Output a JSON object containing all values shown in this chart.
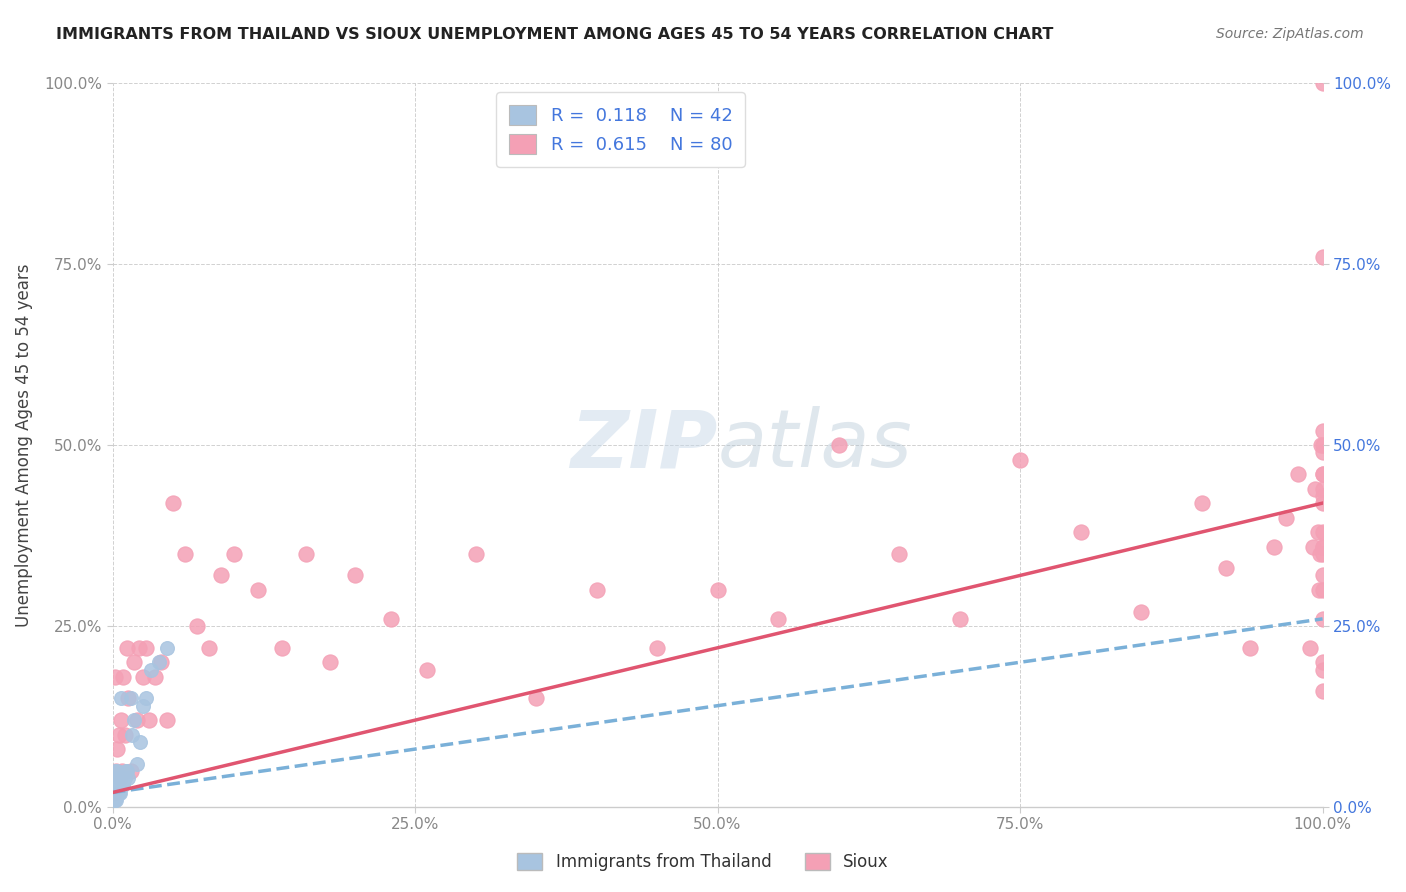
{
  "title": "IMMIGRANTS FROM THAILAND VS SIOUX UNEMPLOYMENT AMONG AGES 45 TO 54 YEARS CORRELATION CHART",
  "source": "Source: ZipAtlas.com",
  "ylabel": "Unemployment Among Ages 45 to 54 years",
  "xlim": [
    0,
    1.0
  ],
  "ylim": [
    0,
    1.0
  ],
  "xticks": [
    0.0,
    0.25,
    0.5,
    0.75,
    1.0
  ],
  "yticks": [
    0.0,
    0.25,
    0.5,
    0.75,
    1.0
  ],
  "xticklabels_left": [
    "0.0%",
    "25.0%",
    "50.0%",
    "75.0%",
    "100.0%"
  ],
  "yticklabels_left": [
    "0.0%",
    "25.0%",
    "50.0%",
    "75.0%",
    "100.0%"
  ],
  "yticklabels_right": [
    "0.0%",
    "25.0%",
    "50.0%",
    "75.0%",
    "100.0%"
  ],
  "color_thailand": "#a8c4e0",
  "color_sioux": "#f4a0b5",
  "color_trendline_thailand": "#7ab0d8",
  "color_trendline_sioux": "#e05570",
  "color_blue_labels": "#4477dd",
  "color_gray_labels": "#888888",
  "background_color": "#ffffff",
  "watermark": "ZIPatlas",
  "thailand_x": [
    0.001,
    0.001,
    0.001,
    0.001,
    0.002,
    0.002,
    0.002,
    0.002,
    0.002,
    0.002,
    0.003,
    0.003,
    0.003,
    0.003,
    0.003,
    0.004,
    0.004,
    0.004,
    0.004,
    0.005,
    0.005,
    0.005,
    0.006,
    0.006,
    0.007,
    0.007,
    0.008,
    0.009,
    0.01,
    0.011,
    0.012,
    0.013,
    0.015,
    0.016,
    0.018,
    0.02,
    0.023,
    0.025,
    0.028,
    0.032,
    0.038,
    0.045
  ],
  "thailand_y": [
    0.01,
    0.02,
    0.03,
    0.04,
    0.01,
    0.02,
    0.02,
    0.03,
    0.04,
    0.05,
    0.01,
    0.02,
    0.03,
    0.03,
    0.04,
    0.02,
    0.03,
    0.04,
    0.05,
    0.02,
    0.03,
    0.04,
    0.02,
    0.03,
    0.03,
    0.15,
    0.04,
    0.03,
    0.04,
    0.05,
    0.05,
    0.04,
    0.15,
    0.1,
    0.12,
    0.06,
    0.09,
    0.14,
    0.15,
    0.19,
    0.2,
    0.22
  ],
  "sioux_x": [
    0.001,
    0.002,
    0.003,
    0.004,
    0.005,
    0.006,
    0.007,
    0.008,
    0.009,
    0.01,
    0.012,
    0.013,
    0.015,
    0.018,
    0.02,
    0.022,
    0.025,
    0.028,
    0.03,
    0.035,
    0.04,
    0.045,
    0.05,
    0.06,
    0.07,
    0.08,
    0.09,
    0.1,
    0.12,
    0.14,
    0.16,
    0.18,
    0.2,
    0.23,
    0.26,
    0.3,
    0.35,
    0.4,
    0.45,
    0.5,
    0.55,
    0.6,
    0.65,
    0.7,
    0.75,
    0.8,
    0.85,
    0.9,
    0.92,
    0.94,
    0.96,
    0.97,
    0.98,
    0.99,
    0.992,
    0.994,
    0.996,
    0.997,
    0.998,
    0.999,
    1.0,
    1.0,
    1.0,
    1.0,
    1.0,
    1.0,
    1.0,
    1.0,
    1.0,
    1.0,
    1.0,
    1.0,
    1.0,
    1.0,
    1.0,
    1.0,
    1.0,
    1.0,
    1.0,
    1.0
  ],
  "sioux_y": [
    0.02,
    0.18,
    0.05,
    0.08,
    0.1,
    0.04,
    0.12,
    0.05,
    0.18,
    0.1,
    0.22,
    0.15,
    0.05,
    0.2,
    0.12,
    0.22,
    0.18,
    0.22,
    0.12,
    0.18,
    0.2,
    0.12,
    0.42,
    0.35,
    0.25,
    0.22,
    0.32,
    0.35,
    0.3,
    0.22,
    0.35,
    0.2,
    0.32,
    0.26,
    0.19,
    0.35,
    0.15,
    0.3,
    0.22,
    0.3,
    0.26,
    0.5,
    0.35,
    0.26,
    0.48,
    0.38,
    0.27,
    0.42,
    0.33,
    0.22,
    0.36,
    0.4,
    0.46,
    0.22,
    0.36,
    0.44,
    0.38,
    0.3,
    0.35,
    0.5,
    0.19,
    0.35,
    0.42,
    0.26,
    0.5,
    0.36,
    0.43,
    0.3,
    0.38,
    0.46,
    0.76,
    0.49,
    0.2,
    0.32,
    0.16,
    0.36,
    0.46,
    0.52,
    0.44,
    1.0
  ],
  "trendline_thailand_x0": 0.0,
  "trendline_thailand_y0": 0.02,
  "trendline_thailand_x1": 1.0,
  "trendline_thailand_y1": 0.26,
  "trendline_sioux_x0": 0.0,
  "trendline_sioux_y0": 0.02,
  "trendline_sioux_x1": 1.0,
  "trendline_sioux_y1": 0.42
}
